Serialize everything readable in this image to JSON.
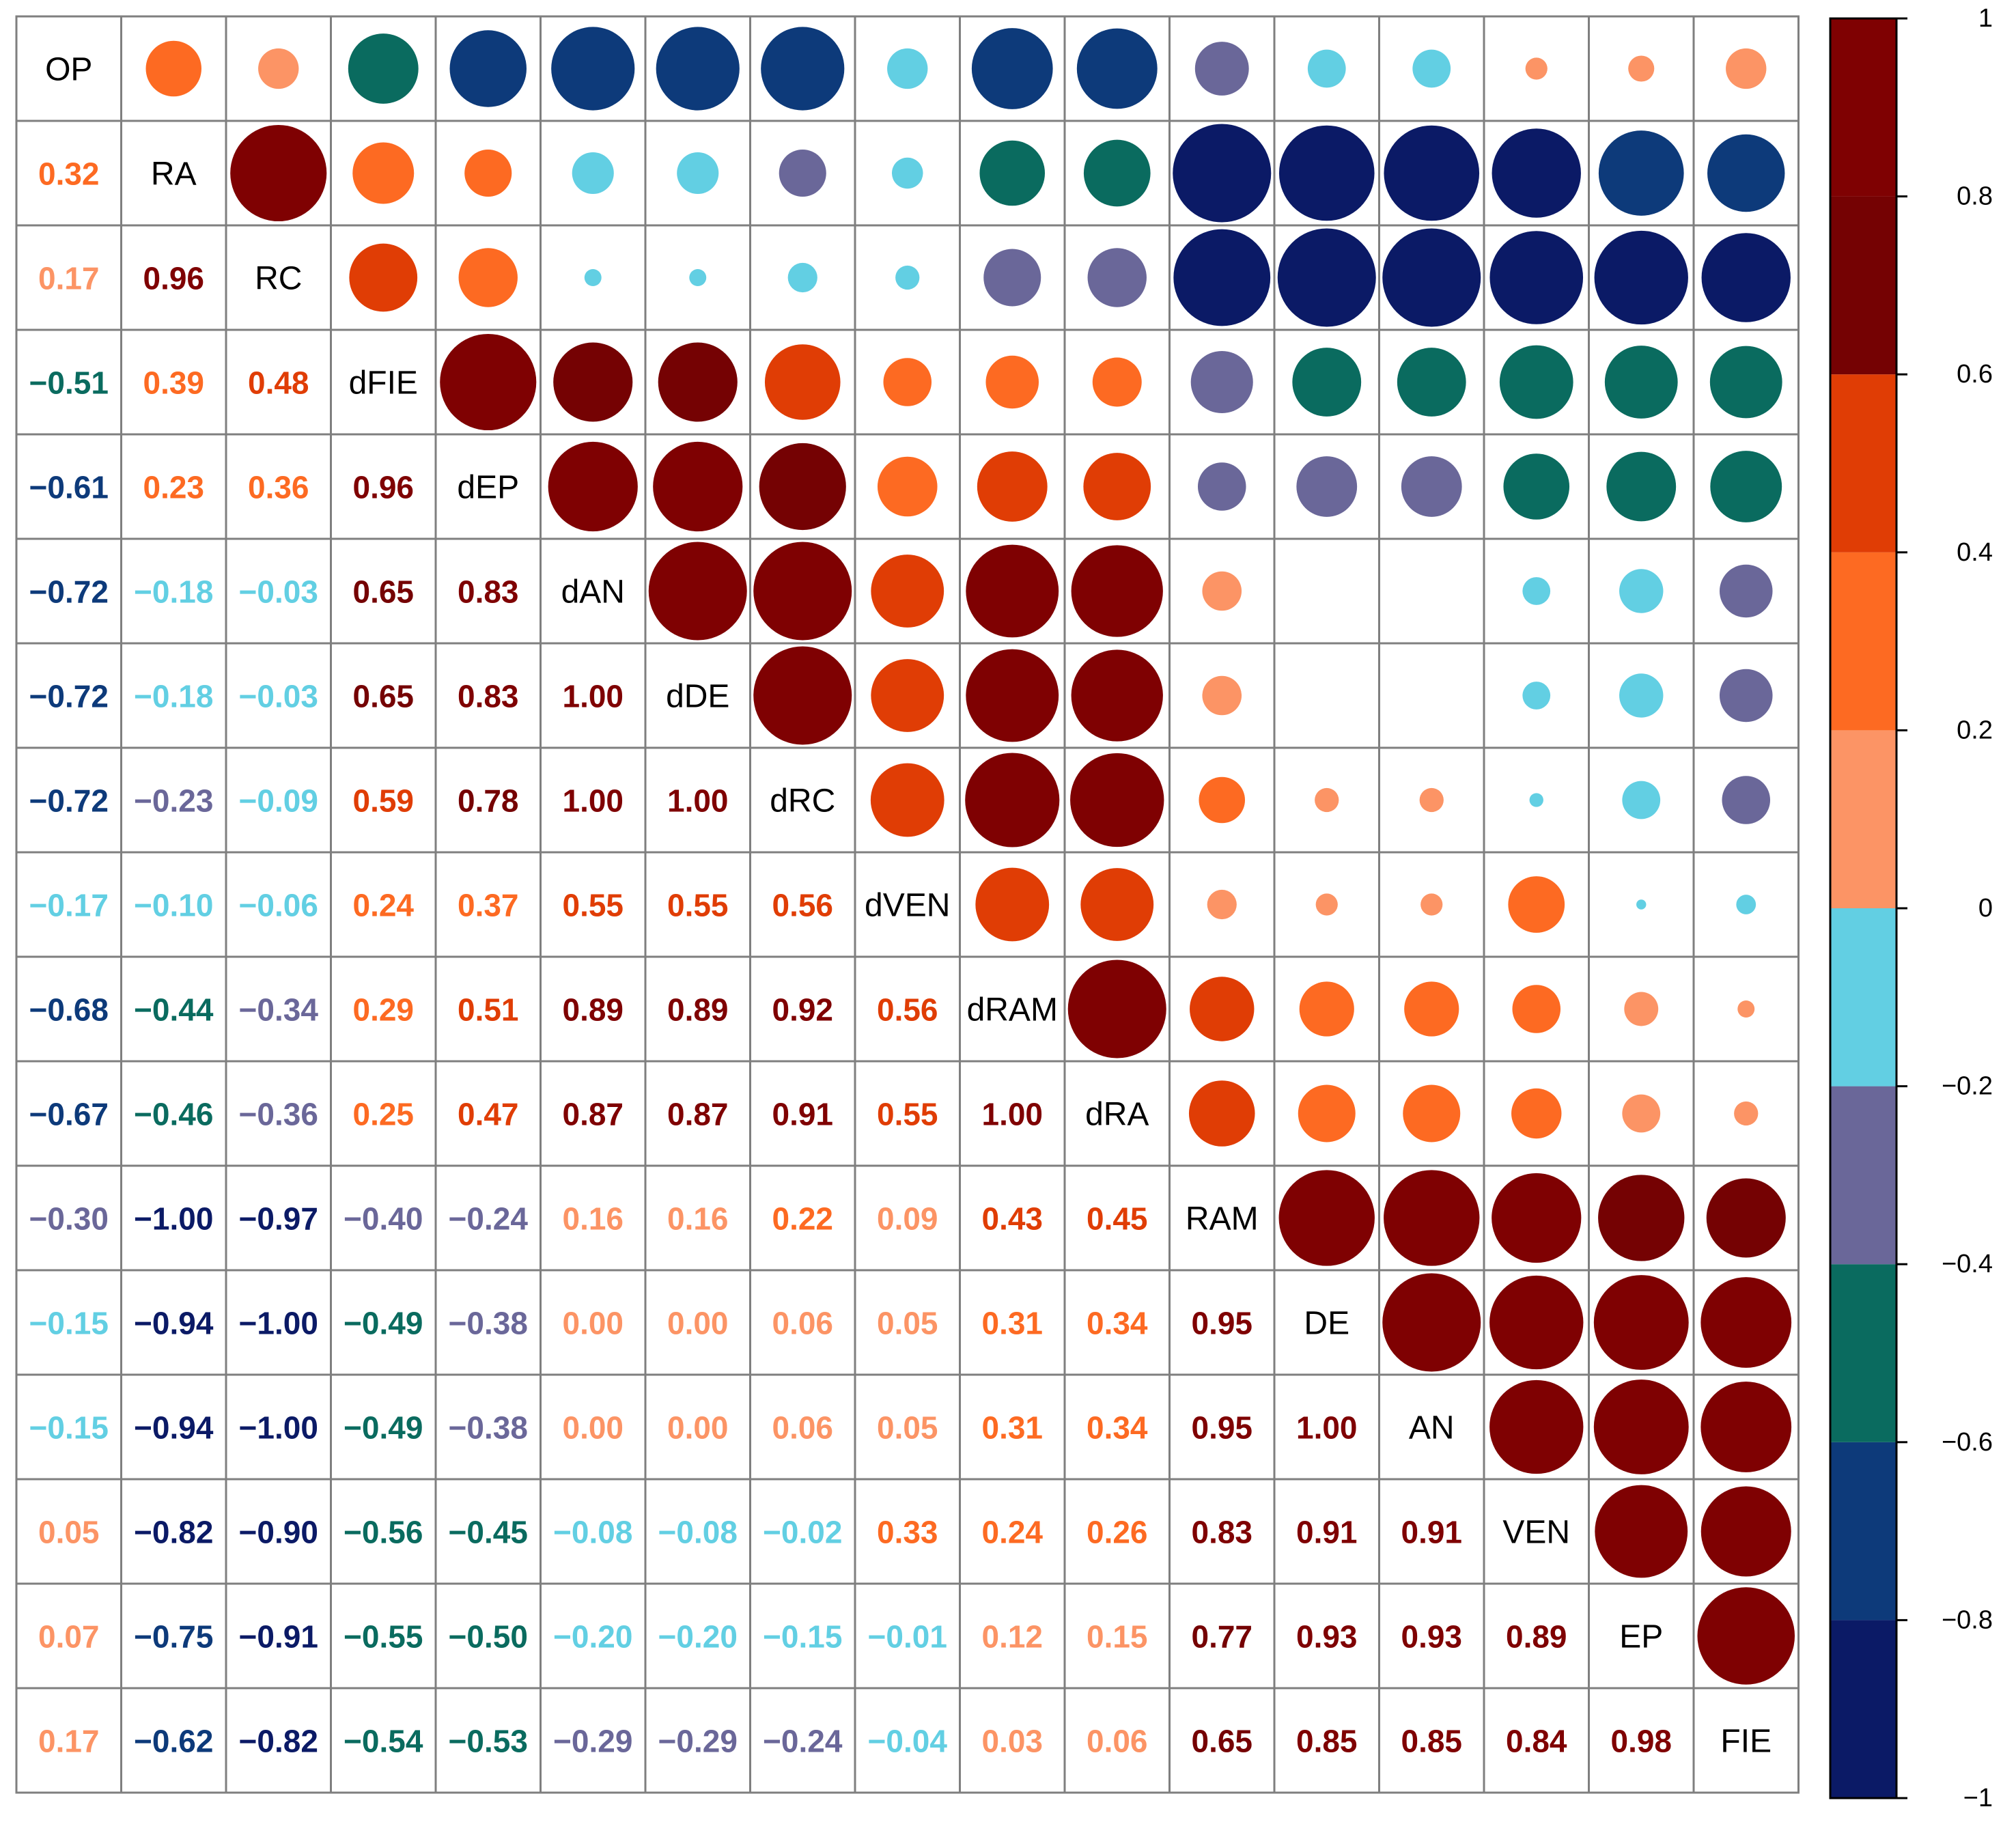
{
  "chart_data": {
    "type": "heatmap",
    "subtype": "correlation-matrix-mixed",
    "upper_triangle": "circle",
    "lower_triangle": "number",
    "diagonal": "variable-name",
    "variables": [
      "OP",
      "RA",
      "RC",
      "dFIE",
      "dEP",
      "dAN",
      "dDE",
      "dRC",
      "dVEN",
      "dRAM",
      "dRA",
      "RAM",
      "DE",
      "AN",
      "VEN",
      "EP",
      "FIE"
    ],
    "matrix": [
      [
        1,
        0.32,
        0.17,
        -0.51,
        -0.61,
        -0.72,
        -0.72,
        -0.72,
        -0.17,
        -0.68,
        -0.67,
        -0.3,
        -0.15,
        -0.15,
        0.05,
        0.07,
        0.17
      ],
      [
        0.32,
        1,
        0.96,
        0.39,
        0.23,
        -0.18,
        -0.18,
        -0.23,
        -0.1,
        -0.44,
        -0.46,
        -1.0,
        -0.94,
        -0.94,
        -0.82,
        -0.75,
        -0.62
      ],
      [
        0.17,
        0.96,
        1,
        0.48,
        0.36,
        -0.03,
        -0.03,
        -0.09,
        -0.06,
        -0.34,
        -0.36,
        -0.97,
        -1.0,
        -1.0,
        -0.9,
        -0.91,
        -0.82
      ],
      [
        -0.51,
        0.39,
        0.48,
        1,
        0.96,
        0.65,
        0.65,
        0.59,
        0.24,
        0.29,
        0.25,
        -0.4,
        -0.49,
        -0.49,
        -0.56,
        -0.55,
        -0.54
      ],
      [
        -0.61,
        0.23,
        0.36,
        0.96,
        1,
        0.83,
        0.83,
        0.78,
        0.37,
        0.51,
        0.47,
        -0.24,
        -0.38,
        -0.38,
        -0.45,
        -0.5,
        -0.53
      ],
      [
        -0.72,
        -0.18,
        -0.03,
        0.65,
        0.83,
        1,
        1.0,
        1.0,
        0.55,
        0.89,
        0.87,
        0.16,
        0.0,
        0.0,
        -0.08,
        -0.2,
        -0.29
      ],
      [
        -0.72,
        -0.18,
        -0.03,
        0.65,
        0.83,
        1.0,
        1,
        1.0,
        0.55,
        0.89,
        0.87,
        0.16,
        0.0,
        0.0,
        -0.08,
        -0.2,
        -0.29
      ],
      [
        -0.72,
        -0.23,
        -0.09,
        0.59,
        0.78,
        1.0,
        1.0,
        1,
        0.56,
        0.92,
        0.91,
        0.22,
        0.06,
        0.06,
        -0.02,
        -0.15,
        -0.24
      ],
      [
        -0.17,
        -0.1,
        -0.06,
        0.24,
        0.37,
        0.55,
        0.55,
        0.56,
        1,
        0.56,
        0.55,
        0.09,
        0.05,
        0.05,
        0.33,
        -0.01,
        -0.04
      ],
      [
        -0.68,
        -0.44,
        -0.34,
        0.29,
        0.51,
        0.89,
        0.89,
        0.92,
        0.56,
        1,
        1.0,
        0.43,
        0.31,
        0.31,
        0.24,
        0.12,
        0.03
      ],
      [
        -0.67,
        -0.46,
        -0.36,
        0.25,
        0.47,
        0.87,
        0.87,
        0.91,
        0.55,
        1.0,
        1,
        0.45,
        0.34,
        0.34,
        0.26,
        0.15,
        0.06
      ],
      [
        -0.3,
        -1.0,
        -0.97,
        -0.4,
        -0.24,
        0.16,
        0.16,
        0.22,
        0.09,
        0.43,
        0.45,
        1,
        0.95,
        0.95,
        0.83,
        0.77,
        0.65
      ],
      [
        -0.15,
        -0.94,
        -1.0,
        -0.49,
        -0.38,
        0.0,
        0.0,
        0.06,
        0.05,
        0.31,
        0.34,
        0.95,
        1,
        1.0,
        0.91,
        0.93,
        0.85
      ],
      [
        -0.15,
        -0.94,
        -1.0,
        -0.49,
        -0.38,
        0.0,
        0.0,
        0.06,
        0.05,
        0.31,
        0.34,
        0.95,
        1.0,
        1,
        0.91,
        0.93,
        0.85
      ],
      [
        0.05,
        -0.82,
        -0.9,
        -0.56,
        -0.45,
        -0.08,
        -0.08,
        -0.02,
        0.33,
        0.24,
        0.26,
        0.83,
        0.91,
        0.91,
        1,
        0.89,
        0.84
      ],
      [
        0.07,
        -0.75,
        -0.91,
        -0.55,
        -0.5,
        -0.2,
        -0.2,
        -0.15,
        -0.01,
        0.12,
        0.15,
        0.77,
        0.93,
        0.93,
        0.89,
        1,
        0.98
      ],
      [
        0.17,
        -0.62,
        -0.82,
        -0.54,
        -0.53,
        -0.29,
        -0.29,
        -0.24,
        -0.04,
        0.03,
        0.06,
        0.65,
        0.85,
        0.85,
        0.84,
        0.98,
        1
      ]
    ],
    "colorbar": {
      "range": [
        -1,
        1
      ],
      "ticks": [
        -1,
        -0.8,
        -0.6,
        -0.4,
        -0.2,
        0,
        0.2,
        0.4,
        0.6,
        0.8,
        1
      ],
      "tick_labels": [
        "−1",
        "−0.8",
        "−0.6",
        "−0.4",
        "−0.2",
        "0",
        "0.2",
        "0.4",
        "0.6",
        "0.8",
        "1"
      ],
      "bins": [
        {
          "from": -1.0,
          "to": -0.8,
          "color": "#0b1a66"
        },
        {
          "from": -0.8,
          "to": -0.6,
          "color": "#0d3a7a"
        },
        {
          "from": -0.6,
          "to": -0.4,
          "color": "#0a6b5f"
        },
        {
          "from": -0.4,
          "to": -0.2,
          "color": "#6a6799"
        },
        {
          "from": -0.2,
          "to": 0.0,
          "color": "#62cfe3"
        },
        {
          "from": 0.0,
          "to": 0.2,
          "color": "#fc9465"
        },
        {
          "from": 0.2,
          "to": 0.4,
          "color": "#fd6a22"
        },
        {
          "from": 0.4,
          "to": 0.6,
          "color": "#e03d05"
        },
        {
          "from": 0.6,
          "to": 0.8,
          "color": "#750203"
        },
        {
          "from": 0.8,
          "to": 1.0,
          "color": "#7f0102"
        }
      ]
    },
    "legend_placement": "right",
    "grid": true
  }
}
